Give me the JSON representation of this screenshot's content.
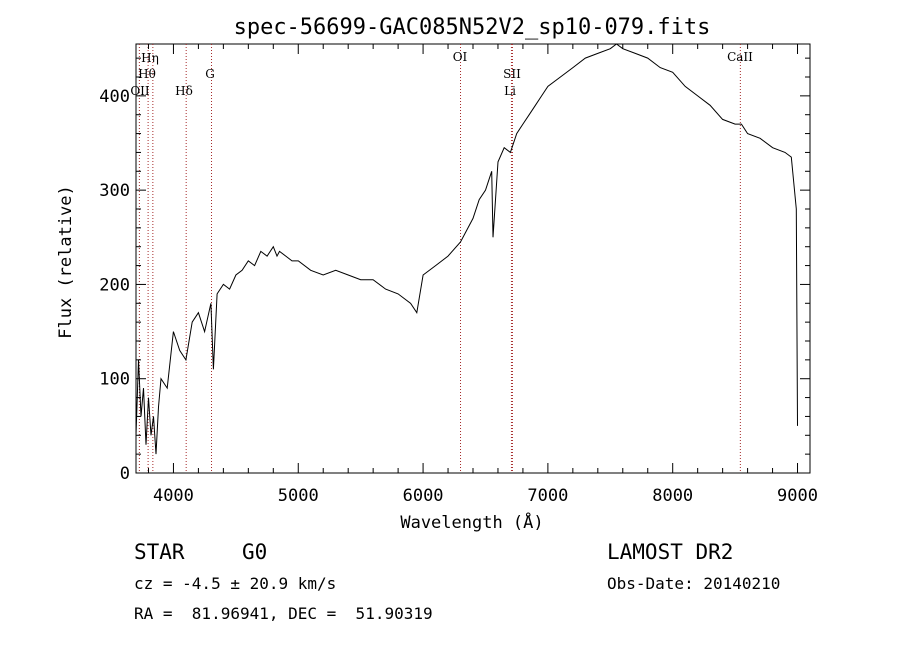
{
  "chart_data": {
    "type": "line",
    "title": "spec-56699-GAC085N52V2_sp10-079.fits",
    "xlabel": "Wavelength (Å)",
    "ylabel": "Flux (relative)",
    "xlim": [
      3700,
      9100
    ],
    "ylim": [
      0,
      455
    ],
    "x_ticks": [
      4000,
      5000,
      6000,
      7000,
      8000,
      9000
    ],
    "y_ticks": [
      0,
      100,
      200,
      300,
      400
    ],
    "x_tick_labels": [
      "4000",
      "5000",
      "6000",
      "7000",
      "8000",
      "9000"
    ],
    "y_tick_labels": [
      "0",
      "100",
      "200",
      "300",
      "400"
    ],
    "line_color": "#000000",
    "marker_color": "#a52a2a",
    "series": [
      {
        "x": [
          3700,
          3720,
          3740,
          3760,
          3780,
          3800,
          3820,
          3840,
          3860,
          3880,
          3900,
          3950,
          4000,
          4050,
          4100,
          4150,
          4200,
          4250,
          4300,
          4320,
          4350,
          4400,
          4450,
          4500,
          4550,
          4600,
          4650,
          4700,
          4750,
          4800,
          4830,
          4850,
          4900,
          4950,
          5000,
          5100,
          5200,
          5300,
          5400,
          5500,
          5600,
          5700,
          5800,
          5900,
          5950,
          6000,
          6100,
          6200,
          6300,
          6400,
          6450,
          6500,
          6550,
          6560,
          6600,
          6650,
          6700,
          6750,
          6800,
          6850,
          6900,
          6950,
          7000,
          7100,
          7200,
          7300,
          7400,
          7500,
          7550,
          7600,
          7700,
          7800,
          7900,
          8000,
          8100,
          8200,
          8300,
          8400,
          8500,
          8550,
          8600,
          8700,
          8800,
          8900,
          8950,
          8990,
          9000
        ],
        "y": [
          40,
          120,
          60,
          90,
          30,
          80,
          40,
          60,
          20,
          70,
          100,
          90,
          150,
          130,
          120,
          160,
          170,
          150,
          180,
          110,
          190,
          200,
          195,
          210,
          215,
          225,
          220,
          235,
          230,
          240,
          230,
          235,
          230,
          225,
          225,
          215,
          210,
          215,
          210,
          205,
          205,
          195,
          190,
          180,
          170,
          210,
          220,
          230,
          245,
          270,
          290,
          300,
          320,
          250,
          330,
          345,
          340,
          360,
          370,
          380,
          390,
          400,
          410,
          420,
          430,
          440,
          445,
          450,
          455,
          450,
          445,
          440,
          430,
          425,
          410,
          400,
          390,
          375,
          370,
          370,
          360,
          355,
          345,
          340,
          335,
          280,
          50
        ]
      }
    ],
    "lines": [
      {
        "label": "Hη",
        "x": 3835
      },
      {
        "label": "Hθ",
        "x": 3797
      },
      {
        "label": "OII",
        "x": 3727
      },
      {
        "label": "Hδ",
        "x": 4102
      },
      {
        "label": "G",
        "x": 4305
      },
      {
        "label": "OI",
        "x": 6300
      },
      {
        "label": "SII",
        "x": 6716
      },
      {
        "label": "Li",
        "x": 6708
      },
      {
        "label": "CaII",
        "x": 8542
      }
    ]
  },
  "info": {
    "object_type": "STAR",
    "subclass": "G0",
    "survey": "LAMOST DR2",
    "redshift": "cz = -4.5 ± 20.9 km/s",
    "obs_date": "Obs-Date: 20140210",
    "coords": "RA =  81.96941, DEC =  51.90319"
  }
}
